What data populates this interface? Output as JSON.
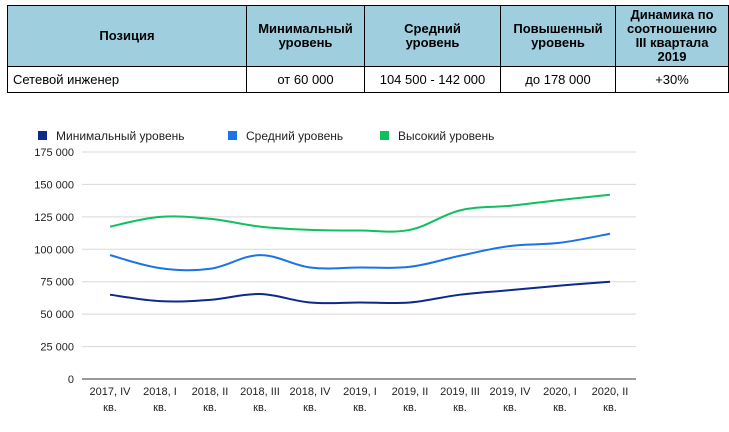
{
  "table": {
    "headers": [
      "Позиция",
      "Минимальный\nуровень",
      "Средний\nуровень",
      "Повышенный\nуровень",
      "Динамика по\nсоотношению\nIII квартала\n2019"
    ],
    "rows": [
      [
        "Сетевой инженер",
        "от 60 000",
        "104 500  - 142 000",
        "до 178 000",
        "+30%"
      ]
    ]
  },
  "chart_data": {
    "type": "line",
    "title": "",
    "xlabel": "",
    "ylabel": "",
    "ylim": [
      0,
      175000
    ],
    "yticks": [
      "175 000",
      "150 000",
      "125 000",
      "100 000",
      "75 000",
      "50 000",
      "25 000",
      "0"
    ],
    "grid": true,
    "legend_position": "top-left",
    "categories": [
      [
        "2017, IV",
        "кв."
      ],
      [
        "2018, I",
        "кв."
      ],
      [
        "2018, II",
        "кв."
      ],
      [
        "2018, III",
        "кв."
      ],
      [
        "2018, IV",
        "кв."
      ],
      [
        "2019, I",
        "кв."
      ],
      [
        "2019, II",
        "кв."
      ],
      [
        "2019, III",
        "кв."
      ],
      [
        "2019, IV",
        "кв."
      ],
      [
        "2020, I",
        "кв."
      ],
      [
        "2020, II",
        "кв."
      ]
    ],
    "series": [
      {
        "name": "Минимальный уровень",
        "color": "#0b2a8c",
        "values": [
          65000,
          60000,
          61000,
          65500,
          59000,
          59000,
          59000,
          65000,
          68500,
          72000,
          75000
        ]
      },
      {
        "name": "Средний уровень",
        "color": "#1a73e8",
        "values": [
          95500,
          85500,
          85000,
          95500,
          86000,
          86000,
          86500,
          95000,
          102500,
          105000,
          112000
        ]
      },
      {
        "name": "Высокий уровень",
        "color": "#10c060",
        "values": [
          117500,
          125000,
          123500,
          117500,
          115000,
          114500,
          115000,
          130000,
          133500,
          138000,
          142000
        ]
      }
    ]
  }
}
